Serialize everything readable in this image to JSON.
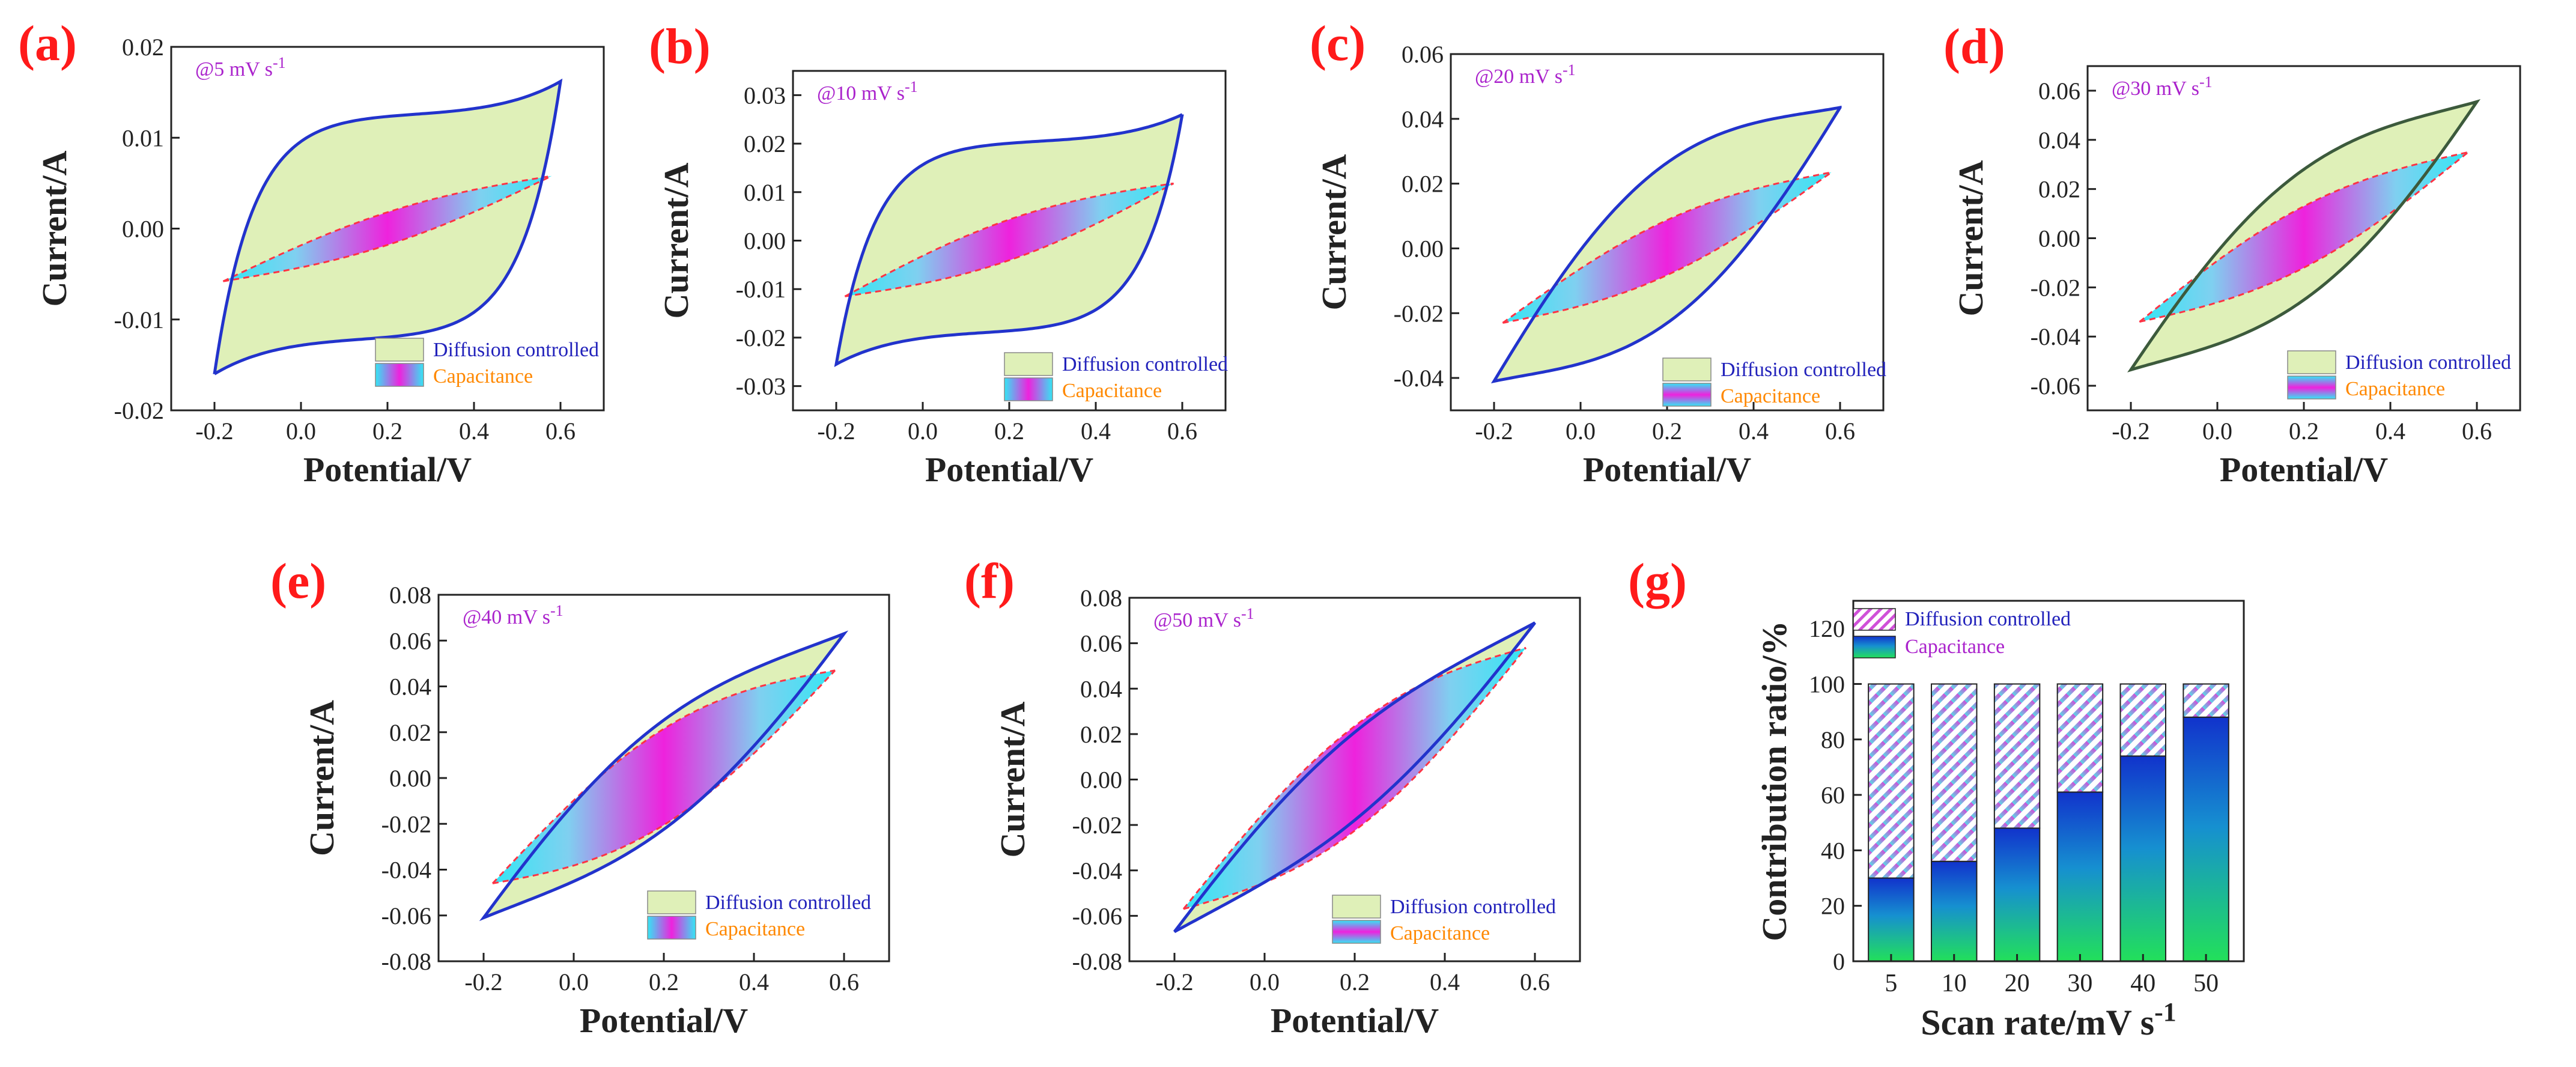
{
  "colors": {
    "panel_label": "#ff1a1a",
    "rate_label": "#aa22cc",
    "axis": "#222222",
    "cv_outline": "#2233cc",
    "cv_outline_d": "#3c5a3c",
    "cv_fill": "#dff0b8",
    "cap_magenta": "#ee22dd",
    "cap_cyan": "#33e6f4",
    "cap_dash": "#ff3344",
    "diff_text": "#2222bb",
    "cap_text": "#ff8800",
    "bar_green": "#22e05a",
    "bar_blue": "#1133cc",
    "hatch_cyan": "#5ad8e6",
    "hatch_pink": "#d050d8"
  },
  "legend": {
    "diffusion": "Diffusion controlled",
    "capacitance": "Capacitance"
  },
  "chart_data": [
    {
      "id": "a",
      "type": "line",
      "label": "(a)",
      "scan_rate": "@5 mV s",
      "rate_sup": "-1",
      "xlabel": "Potential/V",
      "ylabel": "Current/A",
      "xlim": [
        -0.3,
        0.7
      ],
      "ylim": [
        -0.02,
        0.02
      ],
      "xticks": [
        -0.2,
        0.0,
        0.2,
        0.4,
        0.6
      ],
      "xtick_labels": [
        "-0.2",
        "0.0",
        "0.2",
        "0.4",
        "0.6"
      ],
      "yticks": [
        -0.02,
        -0.01,
        0.0,
        0.01,
        0.02
      ],
      "ytick_labels": [
        "-0.02",
        "-0.01",
        "0.00",
        "0.01",
        "0.02"
      ],
      "cv": {
        "vmin": -0.2,
        "vmax": 0.6,
        "i_min": -0.016,
        "i_max": 0.0162,
        "anodic_plateau": 0.0126,
        "cathodic_plateau": -0.0122,
        "shape": "box"
      },
      "capacitive": {
        "i_start": -0.0058,
        "i_end": 0.0058,
        "half_width": 0.0018
      },
      "outline_color_key": "cv_outline"
    },
    {
      "id": "b",
      "type": "line",
      "label": "(b)",
      "scan_rate": "@10 mV s",
      "rate_sup": "-1",
      "xlabel": "Potential/V",
      "ylabel": "Current/A",
      "xlim": [
        -0.3,
        0.7
      ],
      "ylim": [
        -0.035,
        0.035
      ],
      "xticks": [
        -0.2,
        0.0,
        0.2,
        0.4,
        0.6
      ],
      "xtick_labels": [
        "-0.2",
        "0.0",
        "0.2",
        "0.4",
        "0.6"
      ],
      "yticks": [
        -0.03,
        -0.02,
        -0.01,
        0.0,
        0.01,
        0.02,
        0.03
      ],
      "ytick_labels": [
        "-0.03",
        "-0.02",
        "-0.01",
        "0.00",
        "0.01",
        "0.02",
        "0.03"
      ],
      "cv": {
        "vmin": -0.2,
        "vmax": 0.6,
        "i_min": -0.0255,
        "i_max": 0.026,
        "anodic_plateau": 0.0205,
        "cathodic_plateau": -0.019,
        "shape": "box"
      },
      "capacitive": {
        "i_start": -0.0115,
        "i_end": 0.0118,
        "half_width": 0.0042
      },
      "outline_color_key": "cv_outline"
    },
    {
      "id": "c",
      "type": "line",
      "label": "(c)",
      "scan_rate": "@20 mV s",
      "rate_sup": "-1",
      "xlabel": "Potential/V",
      "ylabel": "Current/A",
      "xlim": [
        -0.3,
        0.7
      ],
      "ylim": [
        -0.05,
        0.06
      ],
      "xticks": [
        -0.2,
        0.0,
        0.2,
        0.4,
        0.6
      ],
      "xtick_labels": [
        "-0.2",
        "0.0",
        "0.2",
        "0.4",
        "0.6"
      ],
      "yticks": [
        -0.04,
        -0.02,
        0.0,
        0.02,
        0.04,
        0.06
      ],
      "ytick_labels": [
        "-0.04",
        "-0.02",
        "0.00",
        "0.02",
        "0.04",
        "0.06"
      ],
      "cv": {
        "vmin": -0.2,
        "vmax": 0.6,
        "i_min": -0.041,
        "i_max": 0.0435,
        "anodic_plateau": 0.028,
        "cathodic_plateau": -0.027,
        "shape": "lens"
      },
      "capacitive": {
        "i_start": -0.023,
        "i_end": 0.0235,
        "half_width": 0.0085
      },
      "outline_color_key": "cv_outline"
    },
    {
      "id": "d",
      "type": "line",
      "label": "(d)",
      "scan_rate": "@30 mV s",
      "rate_sup": "-1",
      "xlabel": "Potential/V",
      "ylabel": "Current/A",
      "xlim": [
        -0.3,
        0.7
      ],
      "ylim": [
        -0.07,
        0.07
      ],
      "xticks": [
        -0.2,
        0.0,
        0.2,
        0.4,
        0.6
      ],
      "xtick_labels": [
        "-0.2",
        "0.0",
        "0.2",
        "0.4",
        "0.6"
      ],
      "yticks": [
        -0.06,
        -0.04,
        -0.02,
        0.0,
        0.02,
        0.04,
        0.06
      ],
      "ytick_labels": [
        "-0.06",
        "-0.04",
        "-0.02",
        "0.00",
        "0.02",
        "0.04",
        "0.06"
      ],
      "cv": {
        "vmin": -0.2,
        "vmax": 0.6,
        "i_min": -0.0535,
        "i_max": 0.0555,
        "anodic_plateau": 0.03,
        "cathodic_plateau": -0.029,
        "shape": "lens"
      },
      "capacitive": {
        "i_start": -0.034,
        "i_end": 0.035,
        "half_width": 0.0125
      },
      "outline_color_key": "cv_outline_d"
    },
    {
      "id": "e",
      "type": "line",
      "label": "(e)",
      "scan_rate": "@40 mV s",
      "rate_sup": "-1",
      "xlabel": "Potential/V",
      "ylabel": "Current/A",
      "xlim": [
        -0.3,
        0.7
      ],
      "ylim": [
        -0.08,
        0.08
      ],
      "xticks": [
        -0.2,
        0.0,
        0.2,
        0.4,
        0.6
      ],
      "xtick_labels": [
        "-0.2",
        "0.0",
        "0.2",
        "0.4",
        "0.6"
      ],
      "yticks": [
        -0.08,
        -0.06,
        -0.04,
        -0.02,
        0.0,
        0.02,
        0.04,
        0.06,
        0.08
      ],
      "ytick_labels": [
        "-0.08",
        "-0.06",
        "-0.04",
        "-0.02",
        "0.00",
        "0.02",
        "0.04",
        "0.06",
        "0.08"
      ],
      "cv": {
        "vmin": -0.2,
        "vmax": 0.6,
        "i_min": -0.061,
        "i_max": 0.063,
        "anodic_plateau": 0.027,
        "cathodic_plateau": -0.026,
        "shape": "lens"
      },
      "capacitive": {
        "i_start": -0.046,
        "i_end": 0.047,
        "half_width": 0.021
      },
      "outline_color_key": "cv_outline"
    },
    {
      "id": "f",
      "type": "line",
      "label": "(f)",
      "scan_rate": "@50 mV s",
      "rate_sup": "-1",
      "xlabel": "Potential/V",
      "ylabel": "Current/A",
      "xlim": [
        -0.3,
        0.7
      ],
      "ylim": [
        -0.08,
        0.08
      ],
      "xticks": [
        -0.2,
        0.0,
        0.2,
        0.4,
        0.6
      ],
      "xtick_labels": [
        "-0.2",
        "0.0",
        "0.2",
        "0.4",
        "0.6"
      ],
      "yticks": [
        -0.08,
        -0.06,
        -0.04,
        -0.02,
        0.0,
        0.02,
        0.04,
        0.06,
        0.08
      ],
      "ytick_labels": [
        "-0.08",
        "-0.06",
        "-0.04",
        "-0.02",
        "0.00",
        "0.02",
        "0.04",
        "0.06",
        "0.08"
      ],
      "cv": {
        "vmin": -0.2,
        "vmax": 0.6,
        "i_min": -0.067,
        "i_max": 0.069,
        "anodic_plateau": 0.022,
        "cathodic_plateau": -0.021,
        "shape": "lens"
      },
      "capacitive": {
        "i_start": -0.057,
        "i_end": 0.058,
        "half_width": 0.023
      },
      "outline_color_key": "cv_outline"
    },
    {
      "id": "g",
      "type": "bar",
      "label": "(g)",
      "xlabel": "Scan rate/mV s",
      "xlabel_sup": "-1",
      "ylabel": "Contribution ratio/%",
      "ylim": [
        0,
        130
      ],
      "yticks": [
        0,
        20,
        40,
        60,
        80,
        100,
        120
      ],
      "ytick_labels": [
        "0",
        "20",
        "40",
        "60",
        "80",
        "100",
        "120"
      ],
      "categories": [
        "5",
        "10",
        "20",
        "30",
        "40",
        "50"
      ],
      "series": [
        {
          "name": "Capacitance",
          "values": [
            30,
            36,
            48,
            61,
            74,
            88
          ]
        },
        {
          "name": "Diffusion controlled",
          "values": [
            70,
            64,
            52,
            39,
            26,
            12
          ]
        }
      ]
    }
  ]
}
